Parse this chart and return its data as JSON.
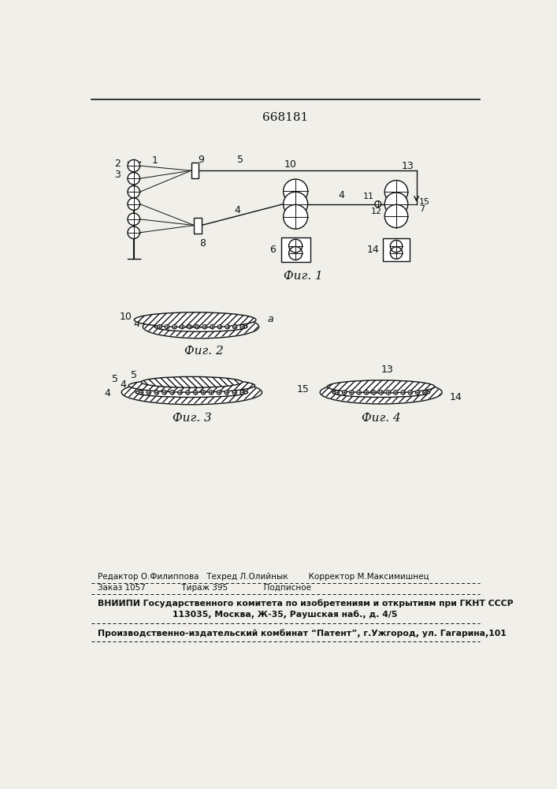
{
  "patent_number": "668181",
  "fig1_label": "Фиг. 1",
  "fig2_label": "Фиг. 2",
  "fig3_label": "Фиг. 3",
  "fig4_label": "Фиг. 4",
  "bg_color": "#f0efea",
  "line_color": "#111111",
  "footer_line1": "Редактор О.Филиппова   Техред Л.Олийнык        Корректор М.Максимишнец",
  "footer_line2": "Заказ 1057              Тираж 395              Подписное",
  "footer_line3": "ВНИИПИ Государственного комитета по изобретениям и открытиям при ГКНТ СССР",
  "footer_line4": "113035, Москва, Ж-35, Раушская наб., д. 4/5",
  "footer_line5": "Производственно-издательский комбинат “Патент”, г.Ужгород, ул. Гагарина,101"
}
